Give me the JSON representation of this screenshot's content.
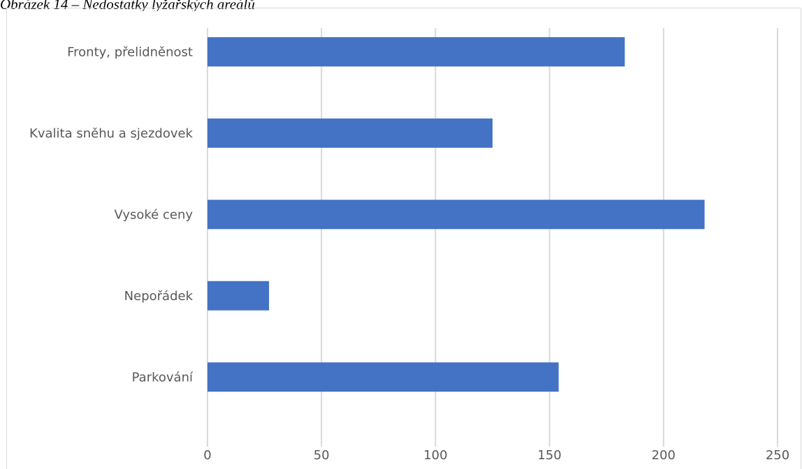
{
  "caption": "Obrázek 14 – Nedostatky lyžařských areálů",
  "chart_data": {
    "type": "bar",
    "orientation": "horizontal",
    "categories": [
      "Fronty, přelidněnost",
      "Kvalita sněhu a sjezdovek",
      "Vysoké ceny",
      "Nepořádek",
      "Parkování"
    ],
    "values": [
      183,
      125,
      218,
      27,
      154
    ],
    "xlim": [
      0,
      250
    ],
    "xticks": [
      0,
      50,
      100,
      150,
      200,
      250
    ],
    "title": "",
    "xlabel": "",
    "ylabel": "",
    "grid": "vertical",
    "legend": "none",
    "bar_color": "#4472C4",
    "grid_color": "#d9d9d9"
  }
}
